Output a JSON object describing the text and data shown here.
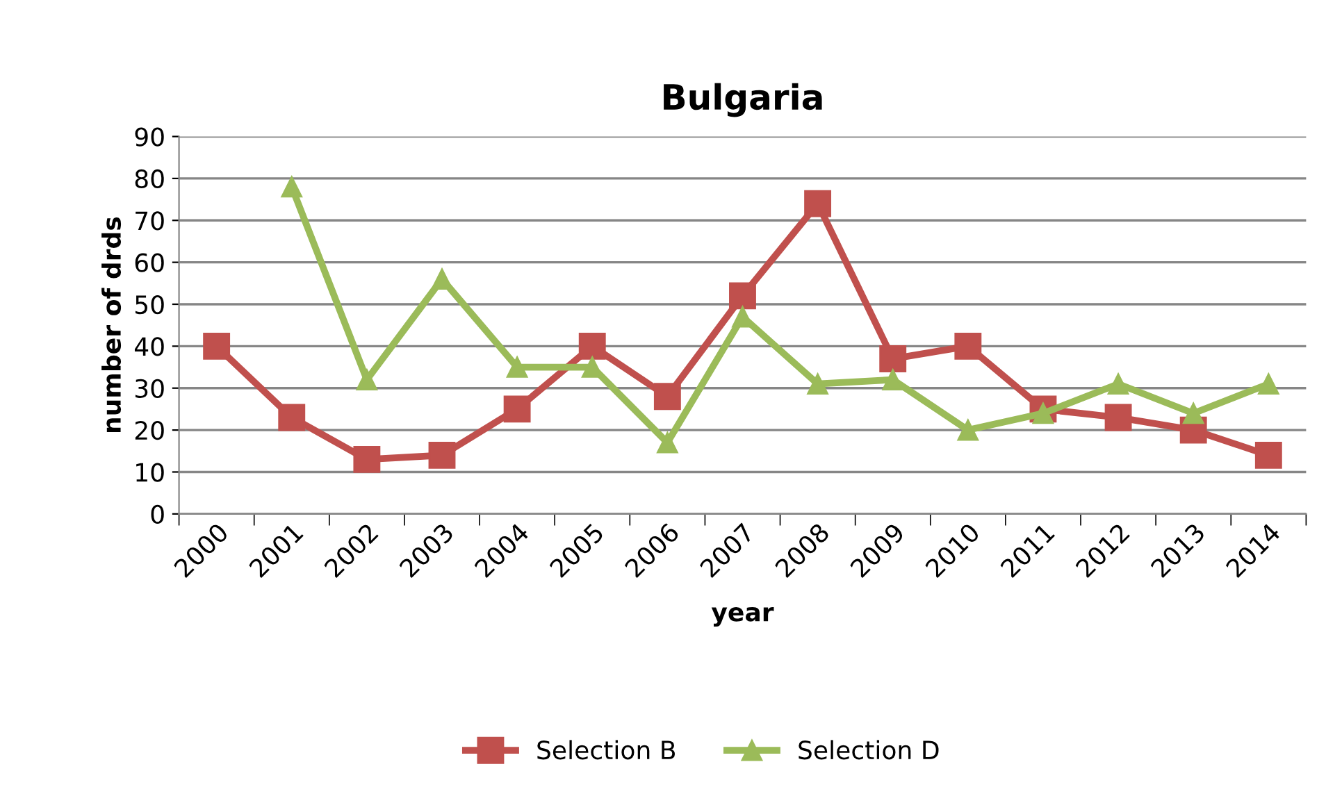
{
  "chart_data": {
    "type": "line",
    "title": "Bulgaria",
    "xlabel": "year",
    "ylabel": "number of drds",
    "categories": [
      "2000",
      "2001",
      "2002",
      "2003",
      "2004",
      "2005",
      "2006",
      "2007",
      "2008",
      "2009",
      "2010",
      "2011",
      "2012",
      "2013",
      "2014"
    ],
    "series": [
      {
        "name": "Selection B",
        "color": "#c0504d",
        "marker": "square",
        "values": [
          40,
          23,
          13,
          14,
          25,
          40,
          28,
          52,
          74,
          37,
          40,
          25,
          23,
          20,
          14
        ]
      },
      {
        "name": "Selection D",
        "color": "#9bbb59",
        "marker": "triangle",
        "values": [
          null,
          78,
          32,
          56,
          35,
          35,
          17,
          47,
          31,
          32,
          20,
          24,
          31,
          24,
          31
        ]
      }
    ],
    "ylim": [
      0,
      90
    ],
    "yticks": [
      0,
      10,
      20,
      30,
      40,
      50,
      60,
      70,
      80,
      90
    ],
    "grid": "y",
    "legend": "bottom",
    "line_style": "solid"
  }
}
